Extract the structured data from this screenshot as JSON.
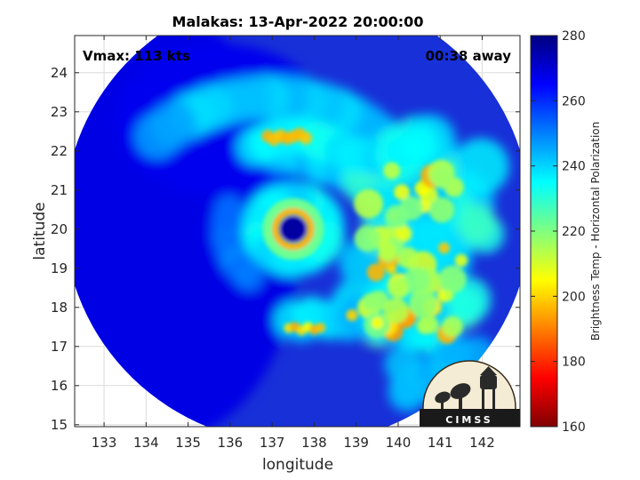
{
  "chart_data": {
    "type": "heatmap",
    "title": "Malakas: 13-Apr-2022 20:00:00",
    "xlabel": "longitude",
    "ylabel": "latitude",
    "xlim": [
      132.3,
      142.9
    ],
    "ylim": [
      14.95,
      24.95
    ],
    "x_ticks": [
      133,
      134,
      135,
      136,
      137,
      138,
      139,
      140,
      141,
      142
    ],
    "y_ticks": [
      15,
      16,
      17,
      18,
      19,
      20,
      21,
      22,
      23,
      24
    ],
    "grid": true,
    "annotations": {
      "vmax": "Vmax: 113 kts",
      "time_away": "00:38 away"
    },
    "colorbar": {
      "label": "Brightness Temp - Horizontal Polarization",
      "min": 160,
      "max": 280,
      "ticks": [
        160,
        180,
        200,
        220,
        240,
        260,
        280
      ],
      "colormap": "jet"
    },
    "storm_center": {
      "lon": 137.5,
      "lat": 20.0
    },
    "swath_center": {
      "lon": 137.6,
      "lat": 20.3
    }
  },
  "logo": {
    "text": "CIMSS"
  },
  "colors": {
    "axis": "#262626",
    "grid": "#dcdcdc",
    "background": "#ffffff"
  }
}
